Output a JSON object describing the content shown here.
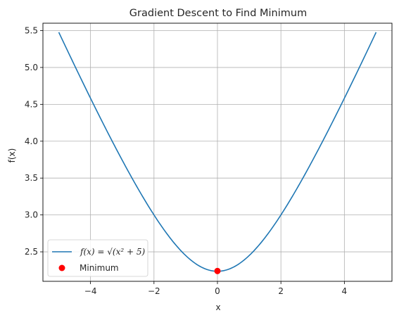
{
  "chart_data": {
    "type": "line",
    "title": "Gradient Descent to Find Minimum",
    "xlabel": "x",
    "ylabel": "f(x)",
    "xlim": [
      -5.5,
      5.5
    ],
    "ylim": [
      2.1,
      5.6
    ],
    "xticks": [
      -4,
      -2,
      0,
      2,
      4
    ],
    "xtick_labels": [
      "−4",
      "−2",
      "0",
      "2",
      "4"
    ],
    "yticks": [
      2.5,
      3.0,
      3.5,
      4.0,
      4.5,
      5.0,
      5.5
    ],
    "ytick_labels": [
      "2.5",
      "3.0",
      "3.5",
      "4.0",
      "4.5",
      "5.0",
      "5.5"
    ],
    "grid": true,
    "legend_position": "lower-left",
    "series": [
      {
        "name": "f(x) = √(x² + 5)",
        "kind": "line",
        "color": "#1f77b4",
        "x_range": [
          -5,
          5
        ],
        "x": [
          -5,
          -4,
          -3,
          -2,
          -1,
          0,
          1,
          2,
          3,
          4,
          5
        ],
        "y": [
          5.48,
          4.58,
          3.74,
          3.0,
          2.45,
          2.24,
          2.45,
          3.0,
          3.74,
          4.58,
          5.48
        ]
      },
      {
        "name": "Minimum",
        "kind": "scatter",
        "color": "#ff0000",
        "x": [
          0
        ],
        "y": [
          2.24
        ]
      }
    ]
  }
}
